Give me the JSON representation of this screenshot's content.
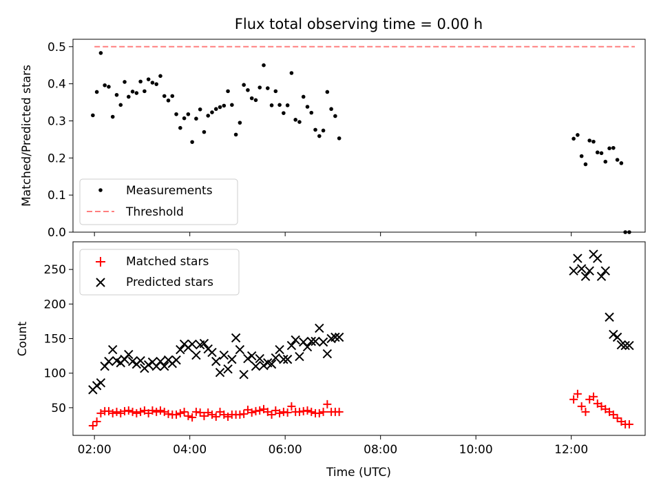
{
  "title": "Flux total observing time = 0.00 h",
  "chart_data": [
    {
      "type": "scatter",
      "panel": "top",
      "ylabel": "Matched/Predicted stars",
      "xlabel": "",
      "xlim": [
        "01:33",
        "13:33"
      ],
      "ylim": [
        0,
        0.52
      ],
      "yticks": [
        0.0,
        0.1,
        0.2,
        0.3,
        0.4,
        0.5
      ],
      "ytick_labels": [
        "0.0",
        "0.1",
        "0.2",
        "0.3",
        "0.4",
        "0.5"
      ],
      "legend": {
        "placement": "lower-left",
        "entries": [
          "Measurements",
          "Threshold"
        ]
      },
      "series": [
        {
          "name": "Measurements",
          "marker": "dot",
          "color": "#000000",
          "x": [
            "01:58",
            "02:03",
            "02:08",
            "02:13",
            "02:18",
            "02:23",
            "02:28",
            "02:33",
            "02:38",
            "02:43",
            "02:48",
            "02:53",
            "02:58",
            "03:03",
            "03:08",
            "03:13",
            "03:18",
            "03:23",
            "03:28",
            "03:33",
            "03:38",
            "03:43",
            "03:48",
            "03:53",
            "03:58",
            "04:03",
            "04:08",
            "04:13",
            "04:18",
            "04:23",
            "04:28",
            "04:33",
            "04:38",
            "04:43",
            "04:48",
            "04:53",
            "04:58",
            "05:03",
            "05:08",
            "05:13",
            "05:18",
            "05:23",
            "05:28",
            "05:33",
            "05:38",
            "05:43",
            "05:48",
            "05:53",
            "05:58",
            "06:03",
            "06:08",
            "06:13",
            "06:18",
            "06:23",
            "06:28",
            "06:33",
            "06:38",
            "06:43",
            "06:48",
            "06:53",
            "06:58",
            "07:03",
            "07:08",
            "12:03",
            "12:08",
            "12:13",
            "12:18",
            "12:23",
            "12:28",
            "12:33",
            "12:38",
            "12:43",
            "12:48",
            "12:53",
            "12:58",
            "13:03",
            "13:08",
            "13:13"
          ],
          "y": [
            0.315,
            0.378,
            0.483,
            0.396,
            0.392,
            0.311,
            0.37,
            0.343,
            0.405,
            0.365,
            0.379,
            0.375,
            0.406,
            0.38,
            0.412,
            0.403,
            0.399,
            0.421,
            0.367,
            0.355,
            0.367,
            0.318,
            0.281,
            0.307,
            0.318,
            0.243,
            0.306,
            0.331,
            0.27,
            0.314,
            0.323,
            0.332,
            0.337,
            0.341,
            0.38,
            0.343,
            0.263,
            0.295,
            0.397,
            0.383,
            0.361,
            0.356,
            0.39,
            0.45,
            0.388,
            0.342,
            0.38,
            0.343,
            0.321,
            0.342,
            0.429,
            0.303,
            0.297,
            0.365,
            0.338,
            0.322,
            0.276,
            0.259,
            0.274,
            0.378,
            0.332,
            0.313,
            0.253,
            0.252,
            0.262,
            0.205,
            0.183,
            0.247,
            0.244,
            0.215,
            0.213,
            0.19,
            0.226,
            0.227,
            0.195,
            0.186,
            0.0,
            0.0
          ]
        },
        {
          "name": "Threshold",
          "marker": "dashed-line",
          "color": "#ff7f7f",
          "x": [
            "02:00",
            "13:20"
          ],
          "y": [
            0.5,
            0.5
          ]
        }
      ]
    },
    {
      "type": "scatter",
      "panel": "bottom",
      "ylabel": "Count",
      "xlabel": "Time (UTC)",
      "xlim": [
        "01:33",
        "13:33"
      ],
      "ylim": [
        10,
        290
      ],
      "yticks": [
        50,
        100,
        150,
        200,
        250
      ],
      "ytick_labels": [
        "50",
        "100",
        "150",
        "200",
        "250"
      ],
      "xticks": [
        "02:00",
        "04:00",
        "06:00",
        "08:00",
        "10:00",
        "12:00"
      ],
      "xtick_labels": [
        "02:00",
        "04:00",
        "06:00",
        "08:00",
        "10:00",
        "12:00"
      ],
      "legend": {
        "placement": "top-left",
        "entries": [
          "Matched stars",
          "Predicted stars"
        ]
      },
      "series": [
        {
          "name": "Matched stars",
          "marker": "plus",
          "color": "#ff0000",
          "x": [
            "01:58",
            "02:03",
            "02:08",
            "02:13",
            "02:18",
            "02:23",
            "02:28",
            "02:33",
            "02:38",
            "02:43",
            "02:48",
            "02:53",
            "02:58",
            "03:03",
            "03:08",
            "03:13",
            "03:18",
            "03:23",
            "03:28",
            "03:33",
            "03:38",
            "03:43",
            "03:48",
            "03:53",
            "03:58",
            "04:03",
            "04:08",
            "04:13",
            "04:18",
            "04:23",
            "04:28",
            "04:33",
            "04:38",
            "04:43",
            "04:48",
            "04:53",
            "04:58",
            "05:03",
            "05:08",
            "05:13",
            "05:18",
            "05:23",
            "05:28",
            "05:33",
            "05:38",
            "05:43",
            "05:48",
            "05:53",
            "05:58",
            "06:03",
            "06:08",
            "06:13",
            "06:18",
            "06:23",
            "06:28",
            "06:33",
            "06:38",
            "06:43",
            "06:48",
            "06:53",
            "06:58",
            "07:03",
            "07:08",
            "12:03",
            "12:08",
            "12:13",
            "12:18",
            "12:23",
            "12:28",
            "12:33",
            "12:38",
            "12:43",
            "12:48",
            "12:53",
            "12:58",
            "13:03",
            "13:08",
            "13:13"
          ],
          "y": [
            24,
            30,
            42,
            45,
            45,
            42,
            44,
            42,
            45,
            46,
            44,
            42,
            44,
            46,
            42,
            46,
            44,
            46,
            44,
            41,
            40,
            40,
            42,
            44,
            38,
            36,
            44,
            43,
            38,
            43,
            40,
            37,
            44,
            40,
            37,
            40,
            40,
            40,
            41,
            47,
            43,
            45,
            46,
            48,
            44,
            40,
            46,
            42,
            44,
            43,
            52,
            44,
            44,
            45,
            46,
            44,
            42,
            42,
            44,
            55,
            44,
            44,
            44,
            62,
            70,
            52,
            44,
            62,
            66,
            56,
            52,
            48,
            44,
            40,
            35,
            30,
            26,
            26
          ]
        },
        {
          "name": "Predicted stars",
          "marker": "x",
          "color": "#000000",
          "x": [
            "01:58",
            "02:03",
            "02:08",
            "02:13",
            "02:18",
            "02:23",
            "02:28",
            "02:33",
            "02:38",
            "02:43",
            "02:48",
            "02:53",
            "02:58",
            "03:03",
            "03:08",
            "03:13",
            "03:18",
            "03:23",
            "03:28",
            "03:33",
            "03:38",
            "03:43",
            "03:48",
            "03:53",
            "03:58",
            "04:03",
            "04:08",
            "04:13",
            "04:18",
            "04:23",
            "04:28",
            "04:33",
            "04:38",
            "04:43",
            "04:48",
            "04:53",
            "04:58",
            "05:03",
            "05:08",
            "05:13",
            "05:18",
            "05:23",
            "05:28",
            "05:33",
            "05:38",
            "05:43",
            "05:48",
            "05:53",
            "05:58",
            "06:03",
            "06:08",
            "06:13",
            "06:18",
            "06:23",
            "06:28",
            "06:33",
            "06:38",
            "06:43",
            "06:48",
            "06:53",
            "06:58",
            "07:03",
            "07:08",
            "12:03",
            "12:08",
            "12:13",
            "12:18",
            "12:23",
            "12:28",
            "12:33",
            "12:38",
            "12:43",
            "12:48",
            "12:53",
            "12:58",
            "13:03",
            "13:08",
            "13:13"
          ],
          "y": [
            76,
            82,
            86,
            110,
            117,
            134,
            118,
            115,
            120,
            127,
            117,
            113,
            118,
            107,
            112,
            116,
            110,
            117,
            110,
            119,
            114,
            119,
            134,
            142,
            137,
            142,
            126,
            141,
            143,
            135,
            130,
            117,
            101,
            126,
            106,
            120,
            151,
            134,
            98,
            121,
            125,
            110,
            121,
            111,
            115,
            113,
            122,
            134,
            120,
            120,
            140,
            148,
            124,
            145,
            138,
            146,
            146,
            165,
            145,
            128,
            150,
            152,
            152,
            248,
            266,
            251,
            240,
            248,
            272,
            266,
            240,
            248,
            181,
            156,
            152,
            141,
            140,
            140
          ]
        }
      ]
    }
  ]
}
